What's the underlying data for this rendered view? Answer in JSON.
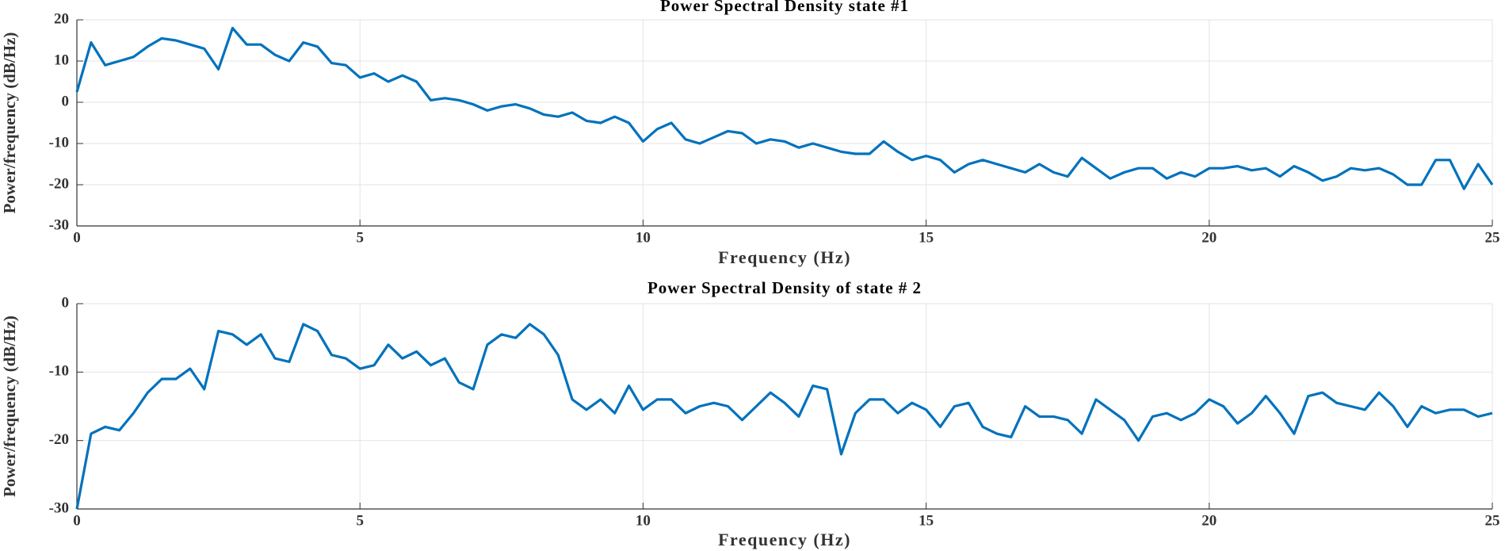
{
  "chart_data": [
    {
      "type": "line",
      "title": "Power Spectral Density state #1",
      "xlabel": "Frequency (Hz)",
      "ylabel": "Power/frequency (dB/Hz)",
      "xlim": [
        0,
        25
      ],
      "ylim": [
        -30,
        20
      ],
      "xticks": [
        0,
        5,
        10,
        15,
        20,
        25
      ],
      "yticks": [
        -30,
        -20,
        -10,
        0,
        10,
        20
      ],
      "grid": true,
      "x": [
        0,
        0.25,
        0.5,
        0.75,
        1,
        1.25,
        1.5,
        1.75,
        2,
        2.25,
        2.5,
        2.75,
        3,
        3.25,
        3.5,
        3.75,
        4,
        4.25,
        4.5,
        4.75,
        5,
        5.25,
        5.5,
        5.75,
        6,
        6.25,
        6.5,
        6.75,
        7,
        7.25,
        7.5,
        7.75,
        8,
        8.25,
        8.5,
        8.75,
        9,
        9.25,
        9.5,
        9.75,
        10,
        10.25,
        10.5,
        10.75,
        11,
        11.25,
        11.5,
        11.75,
        12,
        12.25,
        12.5,
        12.75,
        13,
        13.25,
        13.5,
        13.75,
        14,
        14.25,
        14.5,
        14.75,
        15,
        15.25,
        15.5,
        15.75,
        16,
        16.25,
        16.5,
        16.75,
        17,
        17.25,
        17.5,
        17.75,
        18,
        18.25,
        18.5,
        18.75,
        19,
        19.25,
        19.5,
        19.75,
        20,
        20.25,
        20.5,
        20.75,
        21,
        21.25,
        21.5,
        21.75,
        22,
        22.25,
        22.5,
        22.75,
        23,
        23.25,
        23.5,
        23.75,
        24,
        24.25,
        24.5,
        24.75,
        25
      ],
      "series": [
        {
          "name": "state 1",
          "color": "#0072bd",
          "values": [
            2.5,
            14.5,
            9,
            10,
            11,
            13.5,
            15.5,
            15,
            14,
            13,
            8,
            18,
            14,
            14,
            11.5,
            10,
            14.5,
            13.5,
            9.5,
            9,
            6,
            7,
            5,
            6.5,
            5,
            0.5,
            1,
            0.5,
            -0.5,
            -2,
            -1,
            -0.5,
            -1.5,
            -3,
            -3.5,
            -2.5,
            -4.5,
            -5,
            -3.5,
            -5,
            -9.5,
            -6.5,
            -5,
            -9,
            -10,
            -8.5,
            -7,
            -7.5,
            -10,
            -9,
            -9.5,
            -11,
            -10,
            -11,
            -12,
            -12.5,
            -12.5,
            -9.5,
            -12,
            -14,
            -13,
            -14,
            -17,
            -15,
            -14,
            -15,
            -16,
            -17,
            -15,
            -17,
            -18,
            -13.5,
            -16,
            -18.5,
            -17,
            -16,
            -16,
            -18.5,
            -17,
            -18,
            -16,
            -16,
            -15.5,
            -16.5,
            -16,
            -18,
            -15.5,
            -17,
            -19,
            -18,
            -16,
            -16.5,
            -16,
            -17.5,
            -20,
            -20,
            -14,
            -14,
            -21,
            -15,
            -20
          ]
        }
      ]
    },
    {
      "type": "line",
      "title": "Power Spectral Density of state # 2",
      "xlabel": "Frequency (Hz)",
      "ylabel": "Power/frequency (dB/Hz)",
      "xlim": [
        0,
        25
      ],
      "ylim": [
        -30,
        0
      ],
      "xticks": [
        0,
        5,
        10,
        15,
        20,
        25
      ],
      "yticks": [
        -30,
        -20,
        -10,
        0
      ],
      "grid": true,
      "x": [
        0,
        0.25,
        0.5,
        0.75,
        1,
        1.25,
        1.5,
        1.75,
        2,
        2.25,
        2.5,
        2.75,
        3,
        3.25,
        3.5,
        3.75,
        4,
        4.25,
        4.5,
        4.75,
        5,
        5.25,
        5.5,
        5.75,
        6,
        6.25,
        6.5,
        6.75,
        7,
        7.25,
        7.5,
        7.75,
        8,
        8.25,
        8.5,
        8.75,
        9,
        9.25,
        9.5,
        9.75,
        10,
        10.25,
        10.5,
        10.75,
        11,
        11.25,
        11.5,
        11.75,
        12,
        12.25,
        12.5,
        12.75,
        13,
        13.25,
        13.5,
        13.75,
        14,
        14.25,
        14.5,
        14.75,
        15,
        15.25,
        15.5,
        15.75,
        16,
        16.25,
        16.5,
        16.75,
        17,
        17.25,
        17.5,
        17.75,
        18,
        18.25,
        18.5,
        18.75,
        19,
        19.25,
        19.5,
        19.75,
        20,
        20.25,
        20.5,
        20.75,
        21,
        21.25,
        21.5,
        21.75,
        22,
        22.25,
        22.5,
        22.75,
        23,
        23.25,
        23.5,
        23.75,
        24,
        24.25,
        24.5,
        24.75,
        25
      ],
      "series": [
        {
          "name": "state 2",
          "color": "#0072bd",
          "values": [
            -30,
            -19,
            -18,
            -18.5,
            -16,
            -13,
            -11,
            -11,
            -9.5,
            -12.5,
            -4,
            -4.5,
            -6,
            -4.5,
            -8,
            -8.5,
            -3,
            -4,
            -7.5,
            -8,
            -9.5,
            -9,
            -6,
            -8,
            -7,
            -9,
            -8,
            -11.5,
            -12.5,
            -6,
            -4.5,
            -5,
            -3,
            -4.5,
            -7.5,
            -14,
            -15.5,
            -14,
            -16,
            -12,
            -15.5,
            -14,
            -14,
            -16,
            -15,
            -14.5,
            -15,
            -17,
            -15,
            -13,
            -14.5,
            -16.5,
            -12,
            -12.5,
            -22,
            -16,
            -14,
            -14,
            -16,
            -14.5,
            -15.5,
            -18,
            -15,
            -14.5,
            -18,
            -19,
            -19.5,
            -15,
            -16.5,
            -16.5,
            -17,
            -19,
            -14,
            -15.5,
            -17,
            -20,
            -16.5,
            -16,
            -17,
            -16,
            -14,
            -15,
            -17.5,
            -16,
            -13.5,
            -16,
            -19,
            -13.5,
            -13,
            -14.5,
            -15,
            -15.5,
            -13,
            -15,
            -18,
            -15,
            -16,
            -15.5,
            -15.5,
            -16.5,
            -16
          ]
        }
      ]
    }
  ]
}
